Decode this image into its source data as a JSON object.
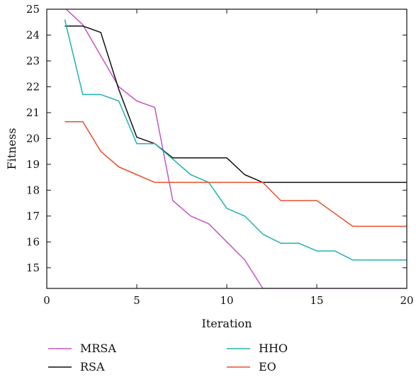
{
  "chart_data": {
    "type": "line",
    "title": "",
    "xlabel": "Iteration",
    "ylabel": "Fitness",
    "xlim": [
      0,
      20
    ],
    "ylim": [
      14.2,
      25
    ],
    "xticks": [
      0,
      5,
      10,
      15,
      20
    ],
    "yticks": [
      15,
      16,
      17,
      18,
      19,
      20,
      21,
      22,
      23,
      24,
      25
    ],
    "grid": false,
    "legend_position": "bottom",
    "series": [
      {
        "name": "MRSA",
        "color": "#c455c4",
        "x": [
          1,
          2,
          3,
          4,
          5,
          6,
          7,
          8,
          9,
          10,
          11,
          12,
          13,
          14,
          15,
          16,
          17,
          18,
          19,
          20
        ],
        "values": [
          25.05,
          24.4,
          23.2,
          22.0,
          21.45,
          21.2,
          17.6,
          17.0,
          16.7,
          16.0,
          15.3,
          14.2,
          14.2,
          14.2,
          14.2,
          14.2,
          14.2,
          14.2,
          14.2,
          14.2
        ]
      },
      {
        "name": "RSA",
        "color": "#111111",
        "x": [
          1,
          2,
          3,
          4,
          5,
          6,
          7,
          8,
          9,
          10,
          11,
          12,
          13,
          14,
          15,
          16,
          17,
          18,
          19,
          20
        ],
        "values": [
          24.35,
          24.35,
          24.1,
          21.9,
          20.05,
          19.8,
          19.25,
          19.25,
          19.25,
          19.25,
          18.6,
          18.3,
          18.3,
          18.3,
          18.3,
          18.3,
          18.3,
          18.3,
          18.3,
          18.3
        ]
      },
      {
        "name": "HHO",
        "color": "#20b2b2",
        "x": [
          1,
          2,
          3,
          4,
          5,
          6,
          7,
          8,
          9,
          10,
          11,
          12,
          13,
          14,
          15,
          16,
          17,
          18,
          19,
          20
        ],
        "values": [
          24.6,
          21.7,
          21.7,
          21.45,
          19.8,
          19.8,
          19.2,
          18.6,
          18.3,
          17.3,
          17.0,
          16.3,
          15.95,
          15.95,
          15.65,
          15.65,
          15.3,
          15.3,
          15.3,
          15.3
        ]
      },
      {
        "name": "EO",
        "color": "#e8502a",
        "x": [
          1,
          2,
          3,
          4,
          5,
          6,
          7,
          8,
          9,
          10,
          11,
          12,
          13,
          14,
          15,
          16,
          17,
          18,
          19,
          20
        ],
        "values": [
          20.65,
          20.65,
          19.5,
          18.9,
          18.6,
          18.3,
          18.3,
          18.3,
          18.3,
          18.3,
          18.3,
          18.3,
          17.6,
          17.6,
          17.6,
          17.1,
          16.6,
          16.6,
          16.6,
          16.6
        ]
      }
    ]
  }
}
